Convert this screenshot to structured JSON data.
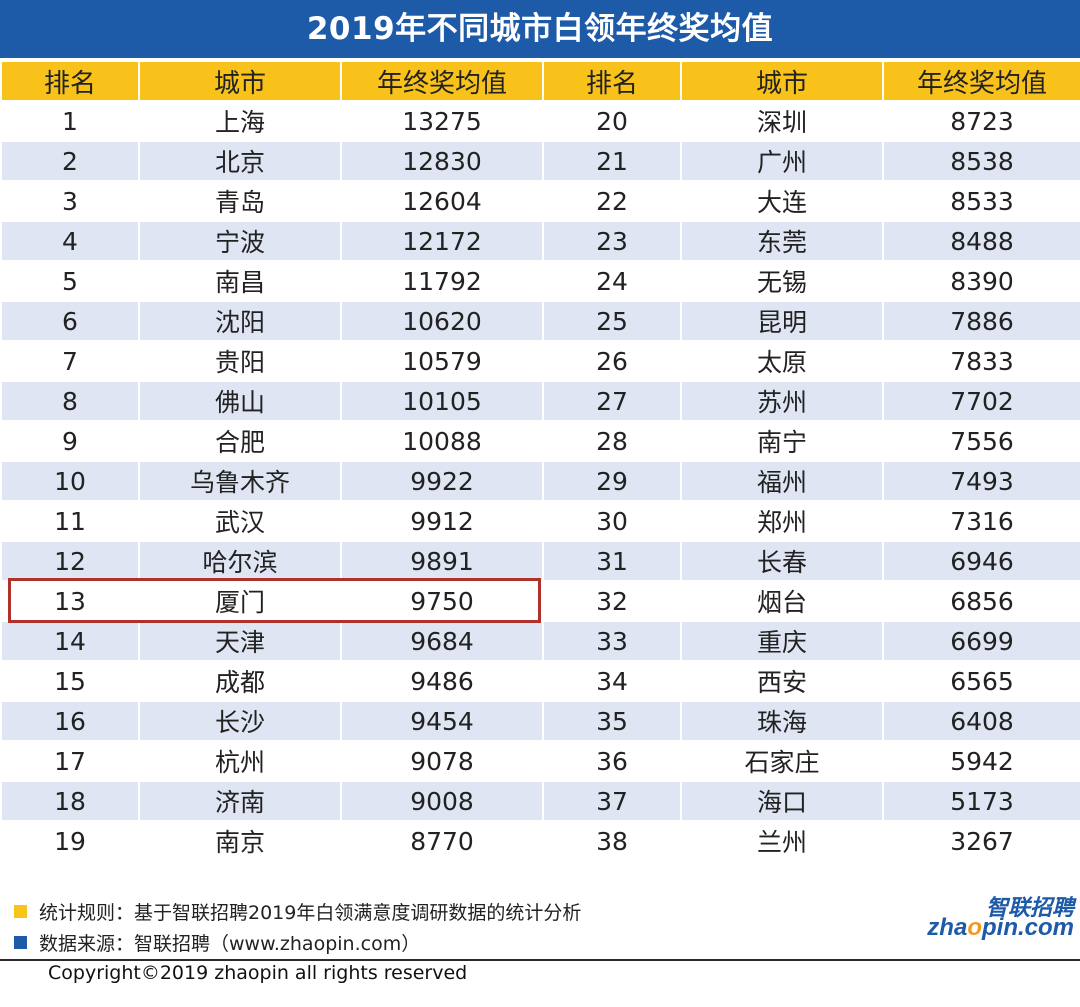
{
  "chart_data": {
    "type": "table",
    "title": "2019年不同城市白领年终奖均值",
    "columns": [
      "排名",
      "城市",
      "年终奖均值",
      "排名",
      "城市",
      "年终奖均值"
    ],
    "rows": [
      {
        "left": {
          "rank": "1",
          "city": "上海",
          "value": "13275"
        },
        "right": {
          "rank": "20",
          "city": "深圳",
          "value": "8723"
        }
      },
      {
        "left": {
          "rank": "2",
          "city": "北京",
          "value": "12830"
        },
        "right": {
          "rank": "21",
          "city": "广州",
          "value": "8538"
        }
      },
      {
        "left": {
          "rank": "3",
          "city": "青岛",
          "value": "12604"
        },
        "right": {
          "rank": "22",
          "city": "大连",
          "value": "8533"
        }
      },
      {
        "left": {
          "rank": "4",
          "city": "宁波",
          "value": "12172"
        },
        "right": {
          "rank": "23",
          "city": "东莞",
          "value": "8488"
        }
      },
      {
        "left": {
          "rank": "5",
          "city": "南昌",
          "value": "11792"
        },
        "right": {
          "rank": "24",
          "city": "无锡",
          "value": "8390"
        }
      },
      {
        "left": {
          "rank": "6",
          "city": "沈阳",
          "value": "10620"
        },
        "right": {
          "rank": "25",
          "city": "昆明",
          "value": "7886"
        }
      },
      {
        "left": {
          "rank": "7",
          "city": "贵阳",
          "value": "10579"
        },
        "right": {
          "rank": "26",
          "city": "太原",
          "value": "7833"
        }
      },
      {
        "left": {
          "rank": "8",
          "city": "佛山",
          "value": "10105"
        },
        "right": {
          "rank": "27",
          "city": "苏州",
          "value": "7702"
        }
      },
      {
        "left": {
          "rank": "9",
          "city": "合肥",
          "value": "10088"
        },
        "right": {
          "rank": "28",
          "city": "南宁",
          "value": "7556"
        }
      },
      {
        "left": {
          "rank": "10",
          "city": "乌鲁木齐",
          "value": "9922"
        },
        "right": {
          "rank": "29",
          "city": "福州",
          "value": "7493"
        }
      },
      {
        "left": {
          "rank": "11",
          "city": "武汉",
          "value": "9912"
        },
        "right": {
          "rank": "30",
          "city": "郑州",
          "value": "7316"
        }
      },
      {
        "left": {
          "rank": "12",
          "city": "哈尔滨",
          "value": "9891"
        },
        "right": {
          "rank": "31",
          "city": "长春",
          "value": "6946"
        }
      },
      {
        "left": {
          "rank": "13",
          "city": "厦门",
          "value": "9750"
        },
        "right": {
          "rank": "32",
          "city": "烟台",
          "value": "6856"
        }
      },
      {
        "left": {
          "rank": "14",
          "city": "天津",
          "value": "9684"
        },
        "right": {
          "rank": "33",
          "city": "重庆",
          "value": "6699"
        }
      },
      {
        "left": {
          "rank": "15",
          "city": "成都",
          "value": "9486"
        },
        "right": {
          "rank": "34",
          "city": "西安",
          "value": "6565"
        }
      },
      {
        "left": {
          "rank": "16",
          "city": "长沙",
          "value": "9454"
        },
        "right": {
          "rank": "35",
          "city": "珠海",
          "value": "6408"
        }
      },
      {
        "left": {
          "rank": "17",
          "city": "杭州",
          "value": "9078"
        },
        "right": {
          "rank": "36",
          "city": "石家庄",
          "value": "5942"
        }
      },
      {
        "left": {
          "rank": "18",
          "city": "济南",
          "value": "9008"
        },
        "right": {
          "rank": "37",
          "city": "海口",
          "value": "5173"
        }
      },
      {
        "left": {
          "rank": "19",
          "city": "南京",
          "value": "8770"
        },
        "right": {
          "rank": "38",
          "city": "兰州",
          "value": "3267"
        }
      }
    ],
    "highlighted_rank": "13"
  },
  "notes": [
    {
      "text": "统计规则：基于智联招聘2019年白领满意度调研数据的统计分析",
      "color": "#f5c518"
    },
    {
      "text": "数据来源：智联招聘（www.zhaopin.com）",
      "color": "#1d5aa7"
    }
  ],
  "copyright": "Copyright©2019 zhaopin all rights reserved",
  "logo": {
    "cn": "智联招聘",
    "en_prefix": "zha",
    "en_o": "o",
    "en_suffix": "pin.com"
  },
  "colors": {
    "title_bg": "#1d5aa7",
    "header_bg": "#f8c21a",
    "row_alt": "#dfe5f3",
    "highlight": "#b0302a"
  }
}
